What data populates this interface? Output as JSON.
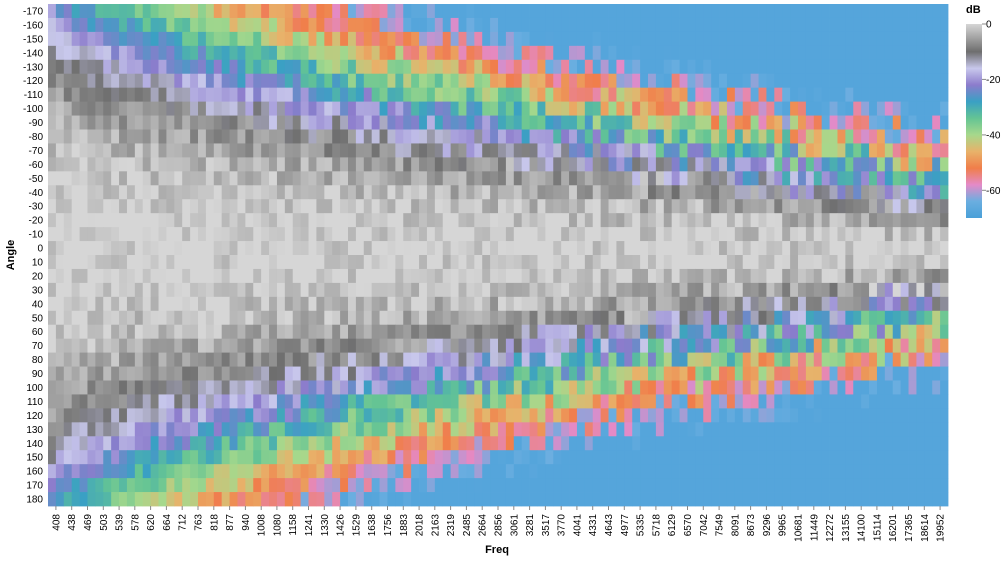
{
  "chart_data": {
    "type": "heatmap",
    "title": "",
    "xlabel": "Freq",
    "ylabel": "Angle",
    "x_tick_labels": [
      "408",
      "438",
      "469",
      "503",
      "539",
      "578",
      "620",
      "664",
      "712",
      "763",
      "818",
      "877",
      "940",
      "1008",
      "1080",
      "1158",
      "1241",
      "1330",
      "1426",
      "1529",
      "1638",
      "1756",
      "1883",
      "2018",
      "2163",
      "2319",
      "2485",
      "2664",
      "2856",
      "3061",
      "3281",
      "3517",
      "3770",
      "4041",
      "4331",
      "4643",
      "4977",
      "5335",
      "5718",
      "6129",
      "6570",
      "7042",
      "7549",
      "8091",
      "8673",
      "9296",
      "9965",
      "10681",
      "11449",
      "12272",
      "13155",
      "14100",
      "15114",
      "16201",
      "17365",
      "18614",
      "19952"
    ],
    "y_values": [
      -170,
      -160,
      -150,
      -140,
      -130,
      -120,
      -110,
      -100,
      -90,
      -80,
      -70,
      -60,
      -50,
      -40,
      -30,
      -20,
      -10,
      0,
      10,
      20,
      30,
      40,
      50,
      60,
      70,
      80,
      90,
      100,
      110,
      120,
      130,
      140,
      150,
      160,
      170,
      180
    ],
    "x_columns": 114,
    "value_range": [
      0,
      -70
    ],
    "colormap": [
      {
        "v": 0,
        "c": "#d6d6d6"
      },
      {
        "v": -10,
        "c": "#6e6e6e"
      },
      {
        "v": -16,
        "c": "#c8c8ec"
      },
      {
        "v": -22,
        "c": "#8c7ccc"
      },
      {
        "v": -28,
        "c": "#3aa0c4"
      },
      {
        "v": -34,
        "c": "#64c494"
      },
      {
        "v": -40,
        "c": "#a6d88c"
      },
      {
        "v": -46,
        "c": "#e8b26a"
      },
      {
        "v": -52,
        "c": "#f07e4a"
      },
      {
        "v": -58,
        "c": "#e48ac8"
      },
      {
        "v": -64,
        "c": "#6aaee0"
      },
      {
        "v": -70,
        "c": "#4aa0d8"
      }
    ],
    "legend": {
      "title": "dB",
      "tick_values": [
        0,
        -20,
        -40,
        -60
      ],
      "tick_labels": [
        "0",
        "-20",
        "-40",
        "-60"
      ],
      "placement": "right"
    },
    "grid": false
  }
}
